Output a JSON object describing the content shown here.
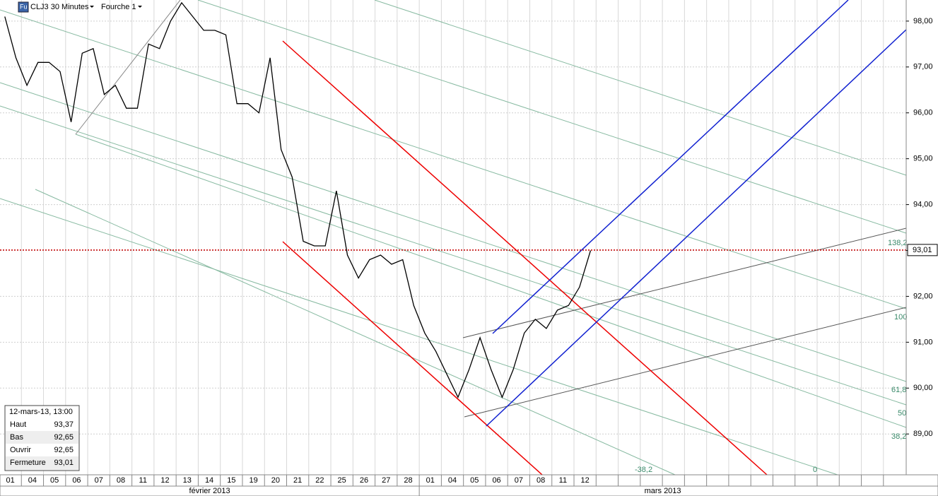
{
  "toolbar": {
    "icon": "Fu",
    "symbol": "CLJ3 30 Minutes",
    "study": "Fourche 1"
  },
  "chart_data": {
    "type": "line",
    "color": "#000000",
    "categories": [
      "01",
      null,
      "04",
      null,
      "05",
      null,
      "06",
      null,
      "07",
      null,
      "08",
      null,
      "11",
      null,
      "12",
      null,
      "13",
      null,
      "14",
      null,
      "15",
      null,
      "19",
      null,
      "20",
      null,
      "21",
      null,
      "22",
      null,
      "25",
      null,
      "26",
      null,
      "27",
      null,
      "28",
      null,
      "01",
      null,
      "04",
      null,
      "05",
      null,
      "06",
      null,
      "07",
      null,
      "08",
      null,
      "11",
      null,
      "12",
      null,
      null,
      null,
      null,
      null,
      null,
      null,
      null,
      null,
      null,
      null,
      null,
      null,
      null,
      null,
      null,
      null,
      null,
      null,
      null,
      null,
      null,
      null,
      null,
      null,
      null,
      null,
      null,
      null
    ],
    "values": [
      98.1,
      97.2,
      96.6,
      97.1,
      97.1,
      96.9,
      95.8,
      97.3,
      97.4,
      96.4,
      96.6,
      96.1,
      96.1,
      97.5,
      97.4,
      98.0,
      98.4,
      98.1,
      97.8,
      97.8,
      97.7,
      96.2,
      96.2,
      96.0,
      97.2,
      95.2,
      94.6,
      93.2,
      93.1,
      93.1,
      94.3,
      92.9,
      92.4,
      92.8,
      92.9,
      92.7,
      92.8,
      91.8,
      91.2,
      90.8,
      90.3,
      89.8,
      90.4,
      91.1,
      90.4,
      89.8,
      90.4,
      91.2,
      91.5,
      91.3,
      91.7,
      91.8,
      92.2,
      93.0,
      null,
      null,
      null,
      null,
      null,
      null,
      null,
      null,
      null,
      null,
      null,
      null,
      null,
      null,
      null,
      null,
      null,
      null,
      null,
      null,
      null,
      null,
      null,
      null,
      null,
      null,
      null,
      null
    ],
    "months": [
      "février 2013",
      "mars 2013"
    ],
    "ylim": [
      88.11,
      98.46
    ],
    "yticks": [
      {
        "value": 89,
        "label": "89,00"
      },
      {
        "value": 90,
        "label": "90,00"
      },
      {
        "value": 91,
        "label": "91,00"
      },
      {
        "value": 92,
        "label": "92,00"
      },
      {
        "value": 93,
        "label": "93,00"
      },
      {
        "value": 94,
        "label": "94,00"
      },
      {
        "value": 95,
        "label": "95,00"
      },
      {
        "value": 96,
        "label": "96,00"
      },
      {
        "value": 97,
        "label": "97,00"
      },
      {
        "value": 98,
        "label": "98,00"
      }
    ],
    "grid": true,
    "last": {
      "value": 93.01,
      "label": "93,01"
    },
    "fib_labels": [
      "138,2",
      "100",
      "61,8",
      "50",
      "38,2",
      "-38,2",
      "0"
    ],
    "info": {
      "date": "12-mars-13, 13:00",
      "rows": [
        [
          "Haut",
          "93,37"
        ],
        [
          "Bas",
          "92,65"
        ],
        [
          "Ouvrir",
          "92,65"
        ],
        [
          "Fermeture",
          "93,01"
        ]
      ]
    }
  }
}
